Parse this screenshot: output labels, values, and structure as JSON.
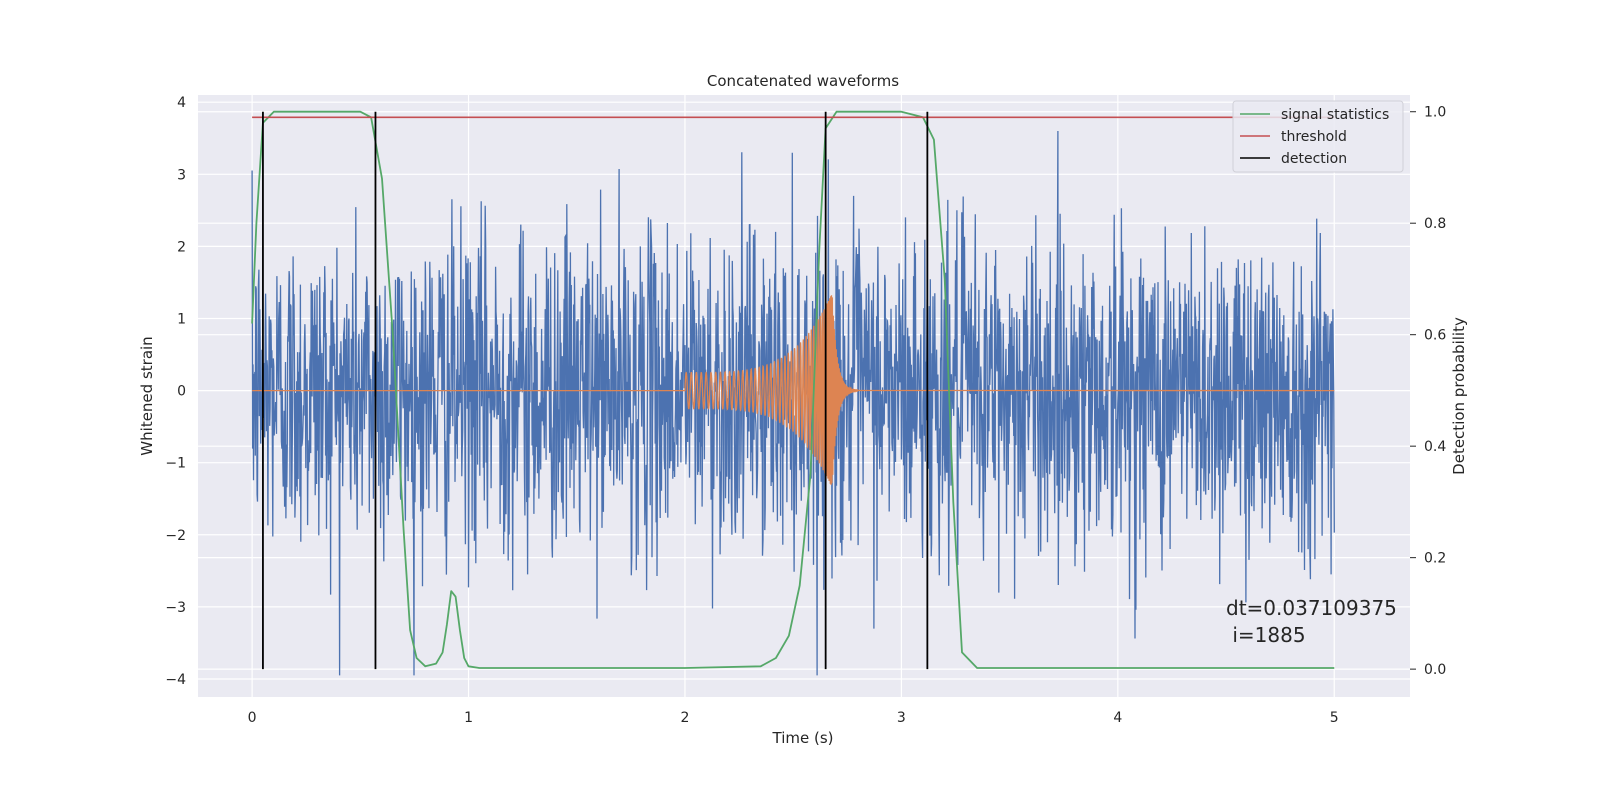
{
  "chart_data": {
    "type": "line",
    "title": "Concatenated waveforms",
    "xlabel": "Time (s)",
    "ylabel_left": "Whitened strain",
    "ylabel_right": "Detection probability",
    "xlim": [
      -0.25,
      5.35
    ],
    "ylim_left": [
      -4.25,
      4.1
    ],
    "ylim_right": [
      -0.05,
      1.03
    ],
    "x_ticks": [
      0,
      1,
      2,
      3,
      4,
      5
    ],
    "y_left_ticks": [
      -4,
      -3,
      -2,
      -1,
      0,
      1,
      2,
      3,
      4
    ],
    "y_right_ticks": [
      0.0,
      0.2,
      0.4,
      0.6,
      0.8,
      1.0
    ],
    "grid": true,
    "legend_position": "top-right",
    "legend": [
      {
        "label": "signal statistics",
        "color": "#55a868"
      },
      {
        "label": "threshold",
        "color": "#c44e52"
      },
      {
        "label": "detection",
        "color": "#000000"
      }
    ],
    "series": [
      {
        "role": "whitened strain (noise)",
        "axis": "left",
        "color": "#4c72b0",
        "x_range": [
          0,
          5
        ],
        "envelope": {
          "typical_amplitude": 1.1,
          "max": 3.6,
          "min": -3.95
        }
      },
      {
        "role": "injected waveform (chirp)",
        "axis": "left",
        "color": "#dd8452",
        "x_range": [
          0,
          5
        ],
        "chirp": {
          "start": 2.0,
          "merger": 2.68,
          "start_amplitude": 0.25,
          "peak_amplitude": 1.35
        }
      },
      {
        "name": "signal statistics",
        "axis": "right",
        "color": "#55a868",
        "x": [
          0,
          0.02,
          0.05,
          0.1,
          0.5,
          0.55,
          0.6,
          0.65,
          0.7,
          0.73,
          0.76,
          0.8,
          0.85,
          0.88,
          0.9,
          0.92,
          0.94,
          0.96,
          0.98,
          1.0,
          1.05,
          1.5,
          2.0,
          2.35,
          2.42,
          2.48,
          2.53,
          2.58,
          2.62,
          2.65,
          2.7,
          3.0,
          3.1,
          3.15,
          3.2,
          3.24,
          3.28,
          3.35,
          4.0,
          5.0
        ],
        "y": [
          0.62,
          0.8,
          0.98,
          1.0,
          1.0,
          0.99,
          0.88,
          0.6,
          0.25,
          0.07,
          0.02,
          0.005,
          0.01,
          0.03,
          0.08,
          0.14,
          0.13,
          0.07,
          0.02,
          0.005,
          0.002,
          0.002,
          0.002,
          0.005,
          0.02,
          0.06,
          0.15,
          0.35,
          0.75,
          0.97,
          1.0,
          1.0,
          0.99,
          0.95,
          0.7,
          0.3,
          0.03,
          0.002,
          0.002,
          0.002
        ]
      },
      {
        "name": "threshold",
        "axis": "right",
        "color": "#c44e52",
        "x": [
          0,
          5
        ],
        "y": [
          0.99,
          0.99
        ]
      }
    ],
    "detections": [
      0.05,
      0.57,
      2.65,
      3.12
    ],
    "annotations": [
      "dt=0.037109375",
      " i=1885"
    ]
  }
}
